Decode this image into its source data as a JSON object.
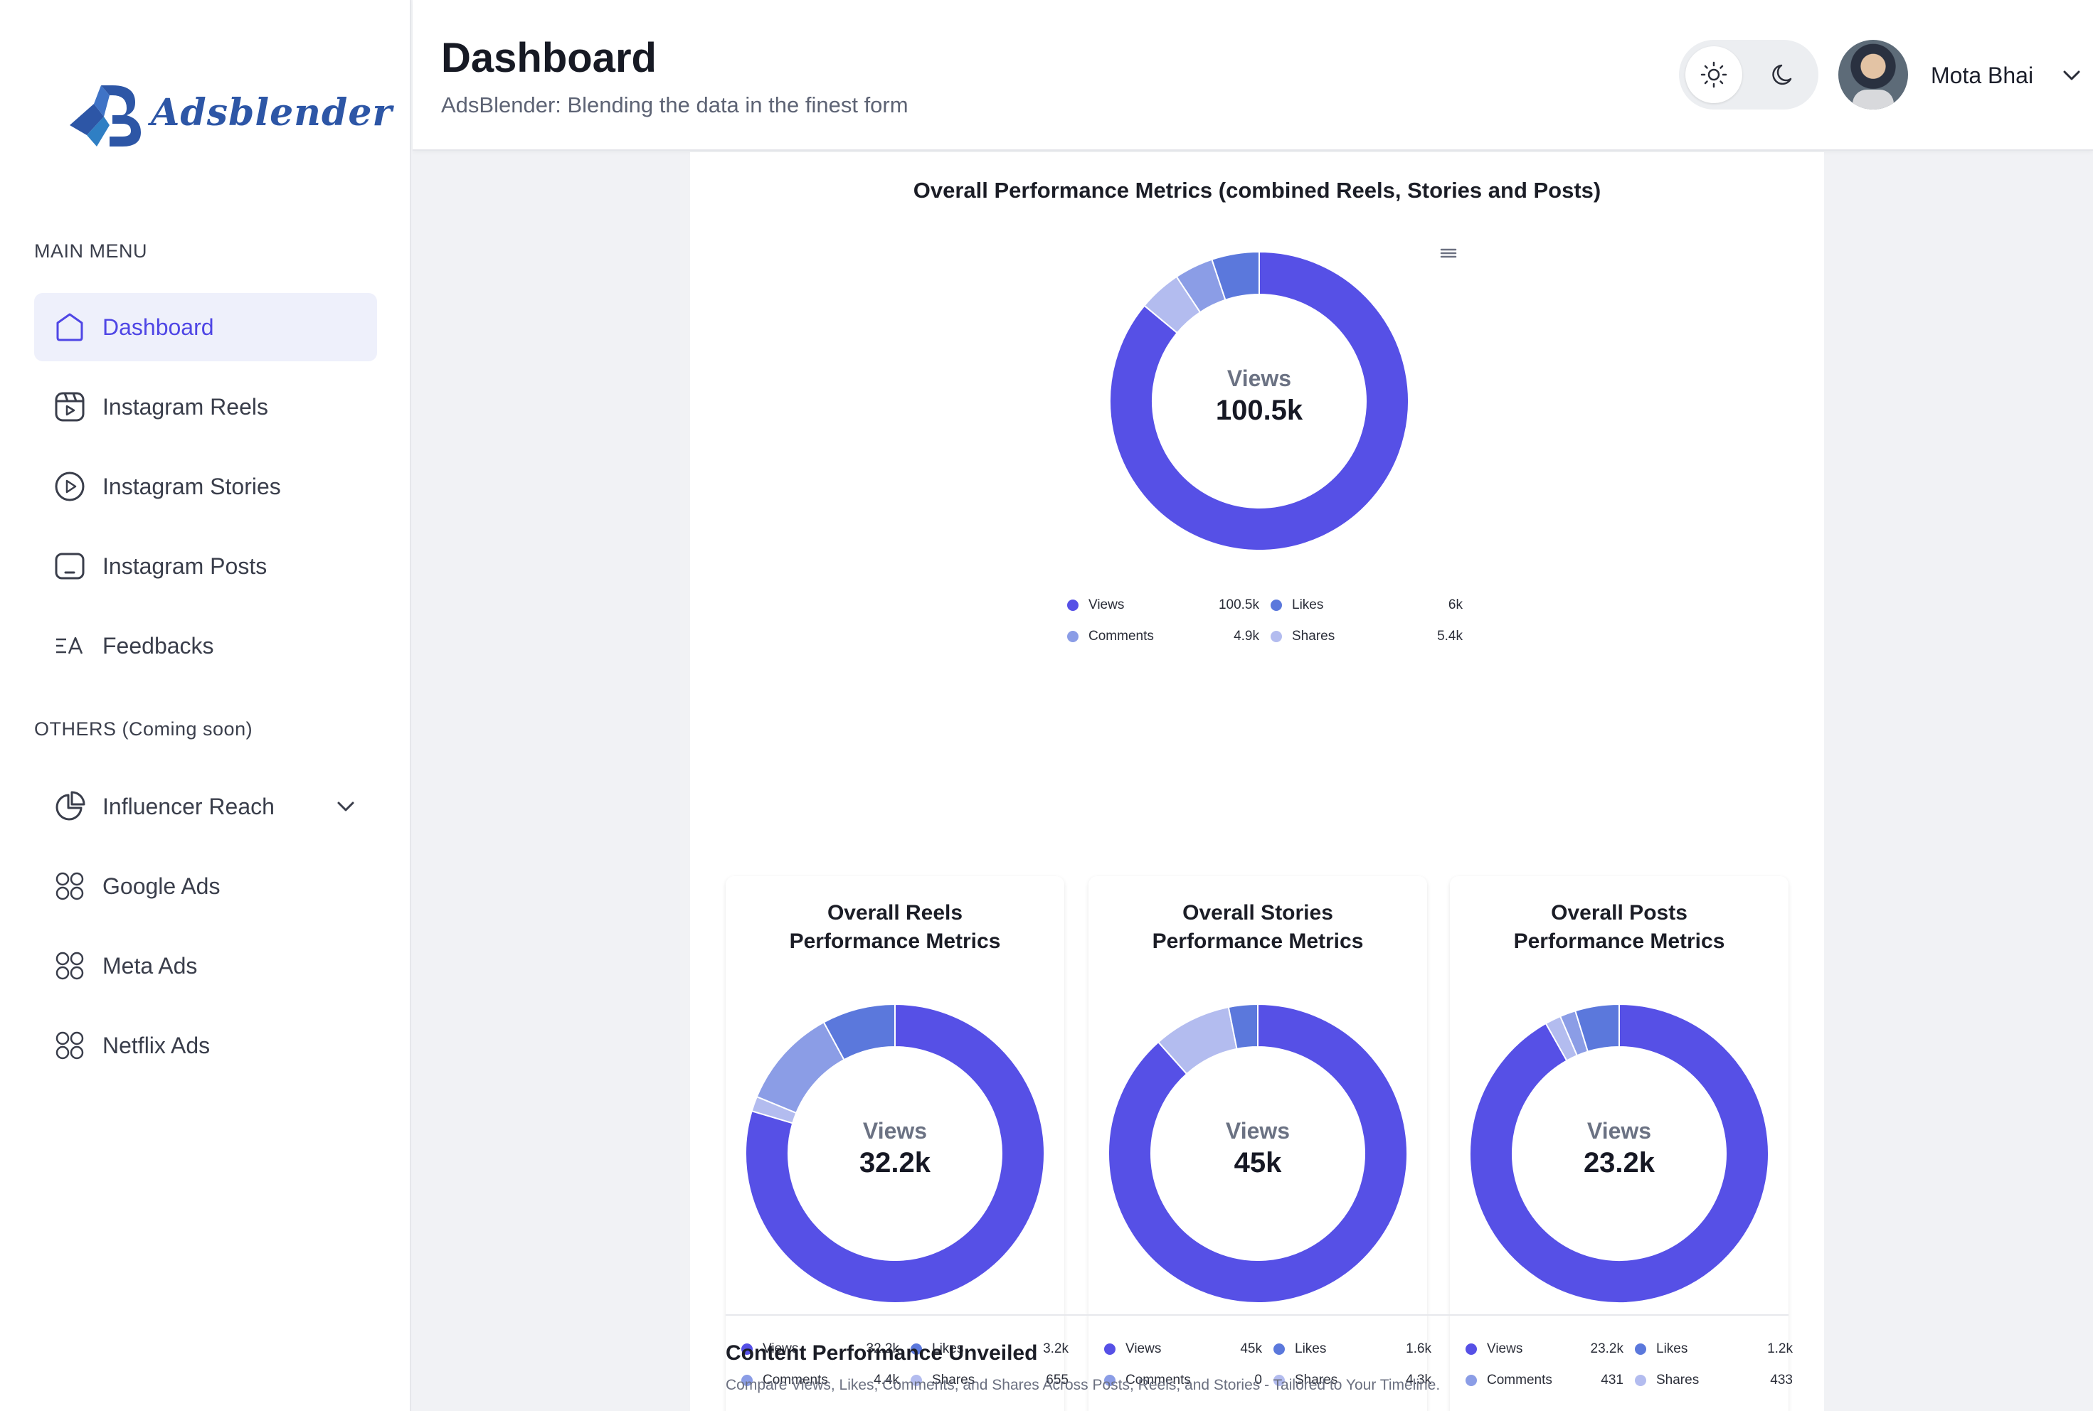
{
  "app": {
    "logo_text": "Adsblender"
  },
  "sidebar": {
    "main_heading": "MAIN MENU",
    "others_heading": "OTHERS (Coming soon)",
    "main_items": [
      {
        "label": "Dashboard",
        "icon": "home-icon",
        "active": true
      },
      {
        "label": "Instagram Reels",
        "icon": "reels-icon",
        "active": false
      },
      {
        "label": "Instagram Stories",
        "icon": "play-circle-icon",
        "active": false
      },
      {
        "label": "Instagram Posts",
        "icon": "post-icon",
        "active": false
      },
      {
        "label": "Feedbacks",
        "icon": "translate-icon",
        "active": false
      }
    ],
    "other_items": [
      {
        "label": "Influencer Reach",
        "icon": "pie-chart-icon",
        "has_dropdown": true
      },
      {
        "label": "Google Ads",
        "icon": "grid-icon"
      },
      {
        "label": "Meta Ads",
        "icon": "grid-icon"
      },
      {
        "label": "Netflix Ads",
        "icon": "grid-icon"
      }
    ]
  },
  "header": {
    "title": "Dashboard",
    "subtitle": "AdsBlender: Blending the data in the finest form",
    "theme_light_icon": "sun-icon",
    "theme_dark_icon": "moon-icon",
    "user_name": "Mota Bhai"
  },
  "colors": {
    "accent": "#4f46e5",
    "views": "#5650e6",
    "likes": "#5b78dc",
    "comments": "#8b9de6",
    "shares": "#b3bcef"
  },
  "chart_data": [
    {
      "type": "pie",
      "title": "Overall Performance Metrics (combined Reels, Stories and Posts)",
      "center_label": "Views",
      "center_value": "100.5k",
      "categories": [
        "Views",
        "Likes",
        "Comments",
        "Shares"
      ],
      "values": [
        100500,
        6000,
        4900,
        5400
      ],
      "value_labels": [
        "100.5k",
        "6k",
        "4.9k",
        "5.4k"
      ]
    },
    {
      "type": "pie",
      "title_line1": "Overall Reels",
      "title_line2": "Performance Metrics",
      "center_label": "Views",
      "center_value": "32.2k",
      "categories": [
        "Views",
        "Likes",
        "Comments",
        "Shares"
      ],
      "values": [
        32200,
        3200,
        4400,
        655
      ],
      "value_labels": [
        "32.2k",
        "3.2k",
        "4.4k",
        "655"
      ]
    },
    {
      "type": "pie",
      "title_line1": "Overall Stories",
      "title_line2": "Performance Metrics",
      "center_label": "Views",
      "center_value": "45k",
      "categories": [
        "Views",
        "Likes",
        "Comments",
        "Shares"
      ],
      "values": [
        45000,
        1600,
        0,
        4300
      ],
      "value_labels": [
        "45k",
        "1.6k",
        "0",
        "4.3k"
      ]
    },
    {
      "type": "pie",
      "title_line1": "Overall Posts",
      "title_line2": "Performance Metrics",
      "center_label": "Views",
      "center_value": "23.2k",
      "categories": [
        "Views",
        "Likes",
        "Comments",
        "Shares"
      ],
      "values": [
        23200,
        1200,
        431,
        433
      ],
      "value_labels": [
        "23.2k",
        "1.2k",
        "431",
        "433"
      ]
    }
  ],
  "section": {
    "title": "Content Performance Unveiled",
    "subtitle": "Compare Views, Likes, Comments, and Shares Across Posts, Reels, and Stories - Tailored to Your Timeline."
  }
}
